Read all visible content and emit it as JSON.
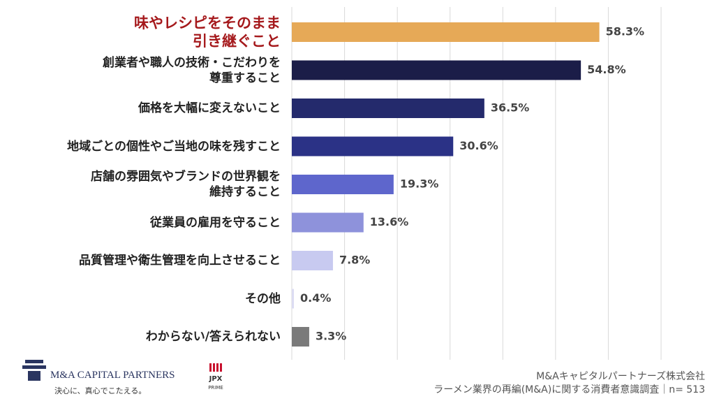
{
  "chart_data": {
    "type": "barh",
    "categories": [
      "味やレシピをそのまま\n引き継ぐこと",
      "創業者や職人の技術・こだわりを\n尊重すること",
      "価格を大幅に変えないこと",
      "地域ごとの個性やご当地の味を残すこと",
      "店舗の雰囲気やブランドの世界観を\n維持すること",
      "従業員の雇用を守ること",
      "品質管理や衛生管理を向上させること",
      "その他",
      "わからない/答えられない"
    ],
    "values": [
      58.3,
      54.8,
      36.5,
      30.6,
      19.3,
      13.6,
      7.8,
      0.4,
      3.3
    ],
    "value_labels": [
      "58.3%",
      "54.8%",
      "36.5%",
      "30.6%",
      "19.3%",
      "13.6%",
      "7.8%",
      "0.4%",
      "3.3%"
    ],
    "colors": [
      "#e6a957",
      "#1b1d48",
      "#242a6c",
      "#2b3286",
      "#5e66cc",
      "#8e92db",
      "#c8caf0",
      "#dcdcf2",
      "#7a7a7a"
    ],
    "label_colors": [
      "#a5191c",
      "#222222",
      "#222222",
      "#222222",
      "#222222",
      "#222222",
      "#222222",
      "#222222",
      "#222222"
    ],
    "xlim": [
      0,
      70
    ],
    "xticks": [
      0,
      10,
      20,
      30,
      40,
      50,
      60,
      70
    ],
    "grid": true
  },
  "footer": {
    "logo": "M&A CAPITAL PARTNERS",
    "tagline": "決心に、真心でこたえる。",
    "jpx": "JPX",
    "prime": "PRIME",
    "source_1": "M&Aキャピタルパートナーズ株式会社",
    "source_2": "ラーメン業界の再編(M&A)に関する消費者意識調査｜n= 513"
  }
}
